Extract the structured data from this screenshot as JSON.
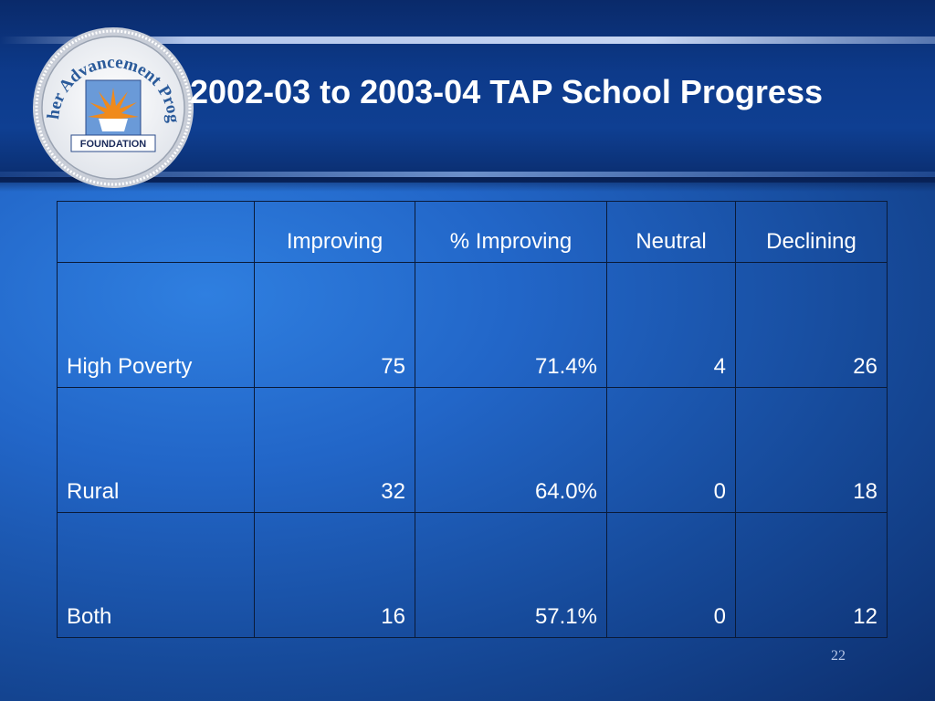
{
  "slide": {
    "title": "2002-03 to 2003-04 TAP School Progress",
    "page_number": "22",
    "logo": {
      "text_arc": "Teacher Advancement Program",
      "banner": "FOUNDATION"
    }
  },
  "table": {
    "headers": [
      "",
      "Improving",
      "% Improving",
      "Neutral",
      "Declining"
    ],
    "rows": [
      [
        "High Poverty",
        "75",
        "71.4%",
        "4",
        "26"
      ],
      [
        "Rural",
        "32",
        "64.0%",
        "0",
        "18"
      ],
      [
        "Both",
        "16",
        "57.1%",
        "0",
        "12"
      ]
    ]
  },
  "colors": {
    "background": "#2266c8",
    "header_band": "#0d3a8a",
    "text": "#ffffff",
    "grid_lines": "#0a1a38",
    "logo_orange": "#f08a1c"
  }
}
